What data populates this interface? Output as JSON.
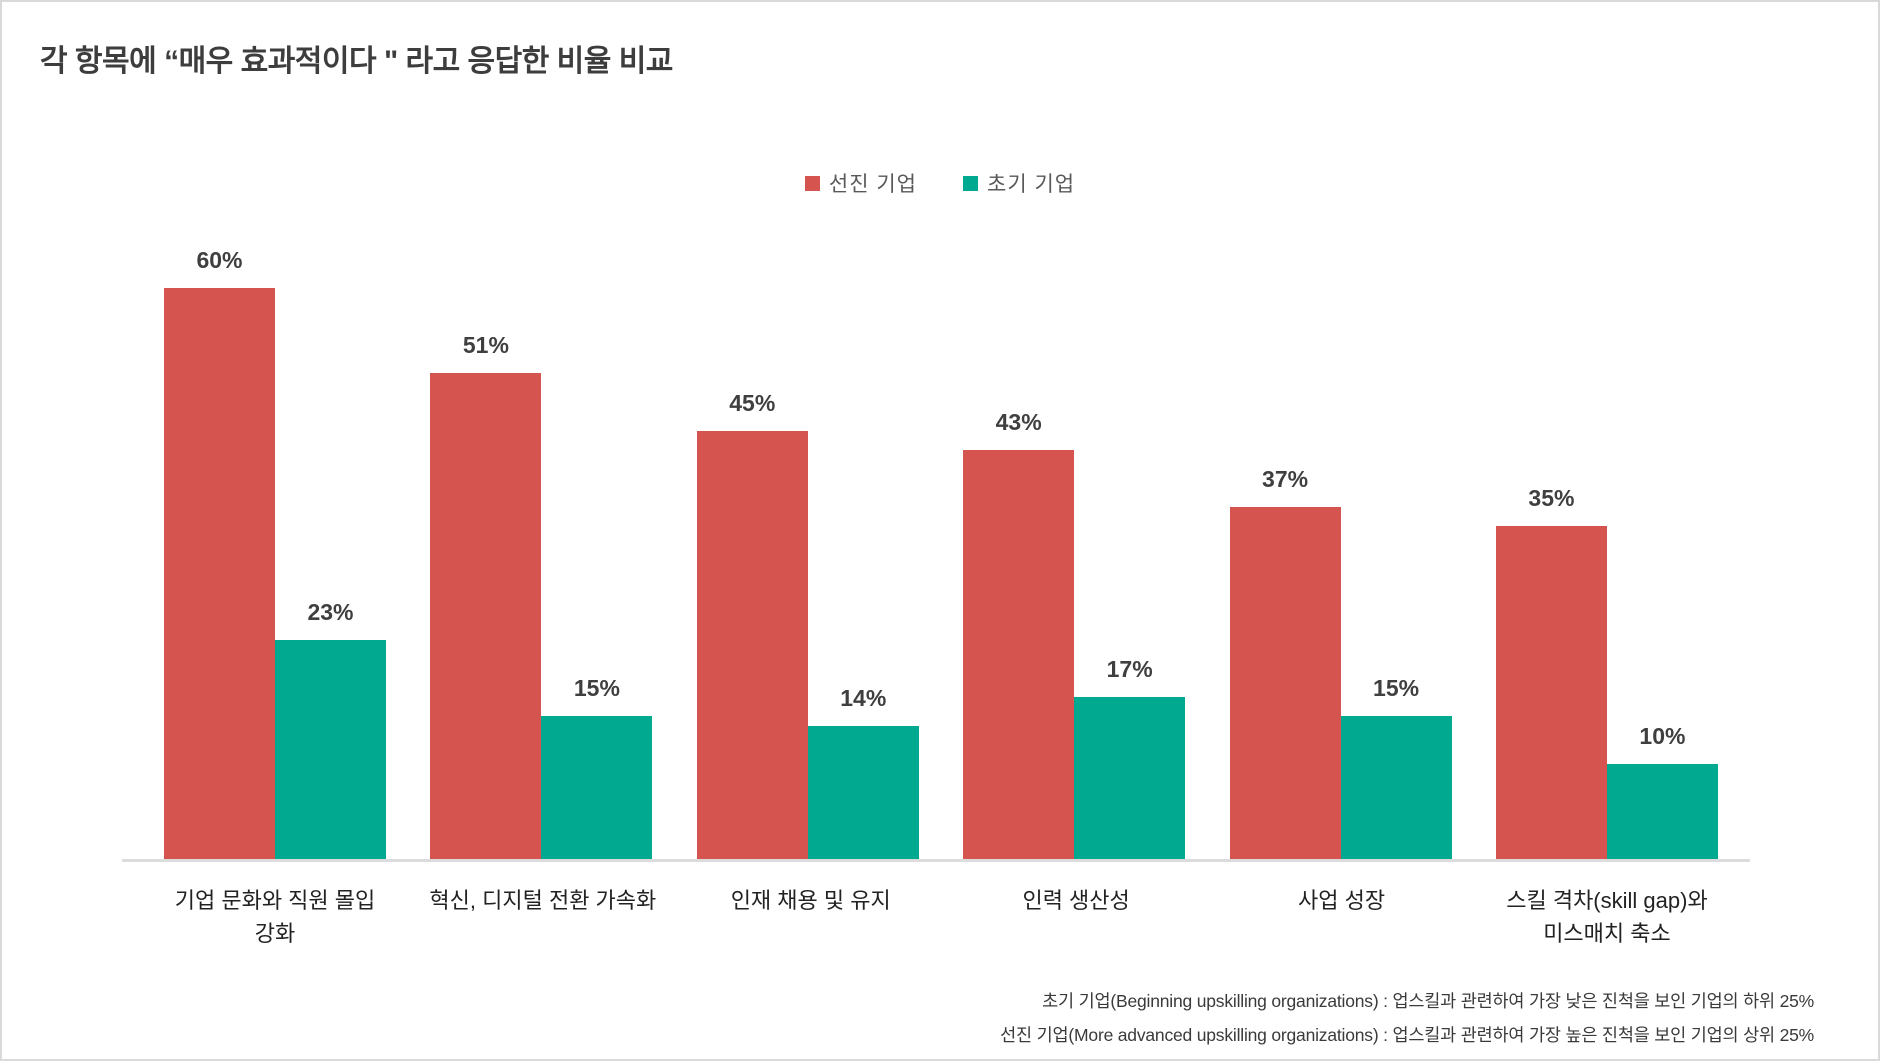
{
  "title": "각 항목에 “매우 효과적이다 \" 라고 응답한 비율 비교",
  "legend": [
    {
      "label": "선진 기업",
      "color": "#d5544f"
    },
    {
      "label": "초기 기업",
      "color": "#00a98f"
    }
  ],
  "chart_data": {
    "type": "bar",
    "title": "각 항목에 “매우 효과적이다 \" 라고 응답한 비율 비교",
    "categories": [
      "기업 문화와 직원 몰입 강화",
      "혁신, 디지털 전환 가속화",
      "인재 채용 및 유지",
      "인력 생산성",
      "사업 성장",
      "스킬 격차(skill gap)와 미스매치 축소"
    ],
    "category_lines": [
      [
        "기업 문화와 직원 몰입",
        "강화"
      ],
      [
        "혁신, 디지털 전환 가속화"
      ],
      [
        "인재 채용 및 유지"
      ],
      [
        "인력 생산성"
      ],
      [
        "사업 성장"
      ],
      [
        "스킬 격차(skill gap)와",
        "미스매치 축소"
      ]
    ],
    "series": [
      {
        "name": "선진 기업",
        "color": "#d5544f",
        "values": [
          60,
          51,
          45,
          43,
          37,
          35
        ]
      },
      {
        "name": "초기 기업",
        "color": "#00a98f",
        "values": [
          23,
          15,
          14,
          17,
          15,
          10
        ]
      }
    ],
    "value_suffix": "%",
    "ylim": [
      0,
      63
    ],
    "grid": false,
    "legend_position": "top-center"
  },
  "footnotes": [
    "초기 기업(Beginning upskilling organizations) : 업스킬과 관련하여 가장 낮은 진척을 보인 기업의 하위 25%",
    "선진 기업(More advanced upskilling organizations) : 업스킬과 관련하여 가장 높은 진척을 보인 기업의 상위 25%"
  ]
}
